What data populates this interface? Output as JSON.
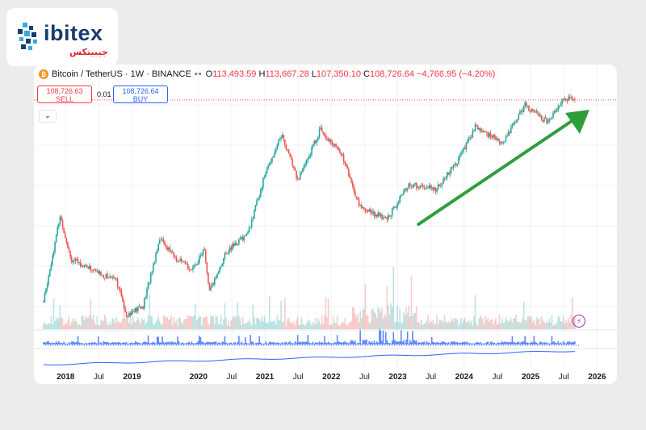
{
  "brand": {
    "name": "ibitex",
    "subtitle": "جیبیتکس"
  },
  "header": {
    "symbol": "Bitcoin / TetherUS",
    "interval": "1W",
    "exchange": "BINANCE",
    "open_label": "O",
    "open": "113,493.59",
    "high_label": "H",
    "high": "113,667.28",
    "low_label": "L",
    "low": "107,350.10",
    "close_label": "C",
    "close": "108,726.64",
    "change": "−4,766.95 (−4.20%)"
  },
  "trade": {
    "sell_price": "108,726.63",
    "sell_label": "SELL",
    "spread": "0.01",
    "buy_price": "108,726.64",
    "buy_label": "BUY"
  },
  "colors": {
    "up": "#26a69a",
    "down": "#ef5350",
    "arrow": "#2e9e3b",
    "ma": "#2962ff",
    "grid": "#f0f3fa"
  },
  "icons": {
    "collapse": "chevron-down-icon",
    "alert": "lightning-icon",
    "coin": "bitcoin-icon"
  },
  "chart_data": {
    "type": "candlestick",
    "x_ticks": [
      "2018",
      "Jul",
      "2019",
      "2020",
      "Jul",
      "2021",
      "Jul",
      "2022",
      "Jul",
      "2023",
      "Jul",
      "2024",
      "Jul",
      "2025",
      "Jul",
      "2026"
    ],
    "ylim": [
      3000,
      130000
    ],
    "log_scale": true,
    "grid": true,
    "weekly_close_anchors": [
      {
        "date": "2017-09",
        "close": 4300
      },
      {
        "date": "2017-12",
        "close": 17000
      },
      {
        "date": "2018-02",
        "close": 8500
      },
      {
        "date": "2018-05",
        "close": 7500
      },
      {
        "date": "2018-08",
        "close": 6500
      },
      {
        "date": "2018-10",
        "close": 6400
      },
      {
        "date": "2018-12",
        "close": 3500
      },
      {
        "date": "2019-03",
        "close": 4000
      },
      {
        "date": "2019-06",
        "close": 12000
      },
      {
        "date": "2019-09",
        "close": 8500
      },
      {
        "date": "2019-12",
        "close": 7200
      },
      {
        "date": "2020-02",
        "close": 10000
      },
      {
        "date": "2020-03",
        "close": 5000
      },
      {
        "date": "2020-06",
        "close": 9500
      },
      {
        "date": "2020-10",
        "close": 13000
      },
      {
        "date": "2021-01",
        "close": 33000
      },
      {
        "date": "2021-04",
        "close": 63000
      },
      {
        "date": "2021-07",
        "close": 30000
      },
      {
        "date": "2021-11",
        "close": 68000
      },
      {
        "date": "2022-03",
        "close": 45000
      },
      {
        "date": "2022-06",
        "close": 20000
      },
      {
        "date": "2022-11",
        "close": 16000
      },
      {
        "date": "2023-03",
        "close": 28000
      },
      {
        "date": "2023-08",
        "close": 26000
      },
      {
        "date": "2023-12",
        "close": 42000
      },
      {
        "date": "2024-03",
        "close": 70000
      },
      {
        "date": "2024-08",
        "close": 55000
      },
      {
        "date": "2024-12",
        "close": 100000
      },
      {
        "date": "2025-04",
        "close": 76000
      },
      {
        "date": "2025-07",
        "close": 113000
      },
      {
        "date": "2025-09",
        "close": 108726.64
      }
    ],
    "current_price": 108726.64,
    "annotations": [
      {
        "type": "arrow",
        "from": "2023-03",
        "to": "2025-08",
        "color": "#2e9e3b"
      }
    ]
  }
}
